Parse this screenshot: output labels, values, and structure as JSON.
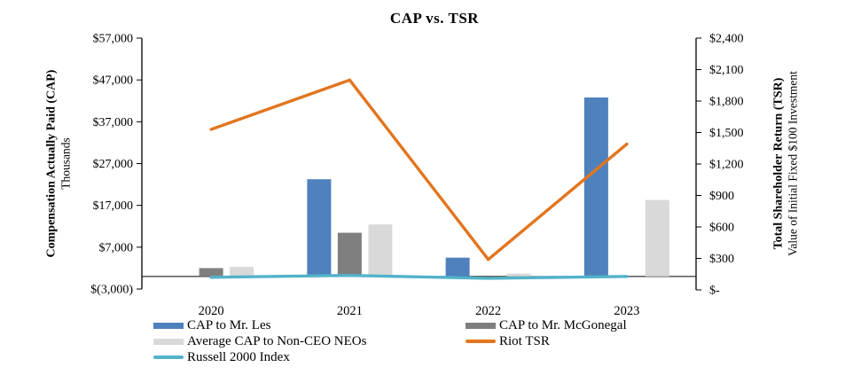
{
  "title": "CAP vs. TSR",
  "left_axis": {
    "title_bold": "Compensation Actually Paid (CAP)",
    "title_sub": "Thousands",
    "ticks": [
      "$57,000",
      "$47,000",
      "$37,000",
      "$27,000",
      "$17,000",
      "$7,000",
      "$(3,000)"
    ]
  },
  "right_axis": {
    "title_bold": "Total Shareholder Return (TSR)",
    "title_sub": "Value of Initial Fixed $100 Investment",
    "ticks": [
      "$2,400",
      "$2,100",
      "$1,800",
      "$1,500",
      "$1,200",
      "$900",
      "$600",
      "$300",
      "$-"
    ]
  },
  "chart_data": {
    "type": "combo-bar-line",
    "title": "CAP vs. TSR",
    "categories": [
      "2020",
      "2021",
      "2022",
      "2023"
    ],
    "left_ylabel": "Compensation Actually Paid (CAP), Thousands",
    "right_ylabel": "Total Shareholder Return (TSR), Value of Initial Fixed $100 Investment",
    "left_ylim": [
      -3000,
      57000
    ],
    "left_tick_step": 10000,
    "right_ylim": [
      0,
      2400
    ],
    "right_tick_step": 300,
    "grid": false,
    "legend_position": "bottom",
    "bar_series": [
      {
        "name": "CAP to Mr. Les",
        "axis": "left",
        "color": "#4F81BD",
        "values": [
          null,
          23250,
          4500,
          42800
        ]
      },
      {
        "name": "CAP to Mr. McGonegal",
        "axis": "left",
        "color": "#7F7F7F",
        "values": [
          2000,
          10450,
          null,
          null
        ]
      },
      {
        "name": "Average CAP to Non-CEO NEOs",
        "axis": "left",
        "color": "#D9D9D9",
        "values": [
          2300,
          12450,
          700,
          18300
        ]
      }
    ],
    "line_series": [
      {
        "name": "Russell 2000 Index",
        "axis": "right",
        "color": "#52B3C9",
        "values": [
          120,
          138,
          110,
          128
        ]
      },
      {
        "name": "Riot TSR",
        "axis": "right",
        "color": "#E2751E",
        "values": [
          1530,
          2000,
          290,
          1390
        ]
      }
    ]
  },
  "legend": {
    "column1": [
      {
        "label": "CAP to Mr. Les",
        "swatch": "bar",
        "color": "#4F81BD"
      },
      {
        "label": "Average CAP to Non-CEO NEOs",
        "swatch": "bar",
        "color": "#D9D9D9"
      },
      {
        "label": "Russell 2000 Index",
        "swatch": "line",
        "color": "#52B3C9"
      }
    ],
    "column2": [
      {
        "label": "CAP to Mr. McGonegal",
        "swatch": "bar",
        "color": "#7F7F7F"
      },
      {
        "label": "Riot TSR",
        "swatch": "line",
        "color": "#E2751E"
      }
    ]
  }
}
